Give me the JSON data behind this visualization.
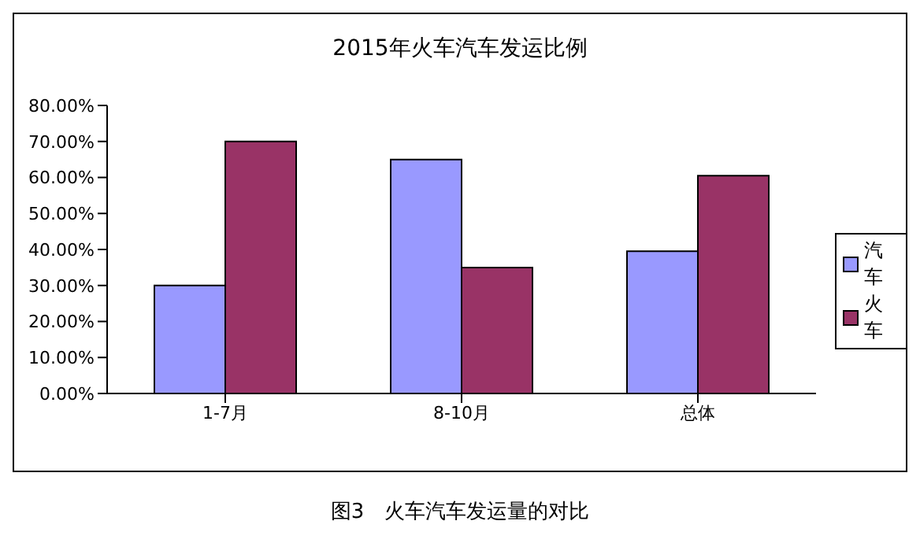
{
  "chart_data": {
    "type": "bar",
    "title": "2015年火车汽车发运比例",
    "categories": [
      "1-7月",
      "8-10月",
      "总体"
    ],
    "series": [
      {
        "name": "汽车",
        "color": "#9999ff",
        "values": [
          30,
          65,
          39.5
        ]
      },
      {
        "name": "火车",
        "color": "#993366",
        "values": [
          70,
          35,
          60.5
        ]
      }
    ],
    "ylim": [
      0,
      80
    ],
    "yticks": [
      {
        "value": 0,
        "label": "0.00%"
      },
      {
        "value": 10,
        "label": "10.00%"
      },
      {
        "value": 20,
        "label": "20.00%"
      },
      {
        "value": 30,
        "label": "30.00%"
      },
      {
        "value": 40,
        "label": "40.00%"
      },
      {
        "value": 50,
        "label": "50.00%"
      },
      {
        "value": 60,
        "label": "60.00%"
      },
      {
        "value": 70,
        "label": "70.00%"
      },
      {
        "value": 80,
        "label": "80.00%"
      }
    ],
    "grid": false,
    "legend": "right",
    "annotations": [
      "图3　火车汽车发运量的对比"
    ]
  }
}
